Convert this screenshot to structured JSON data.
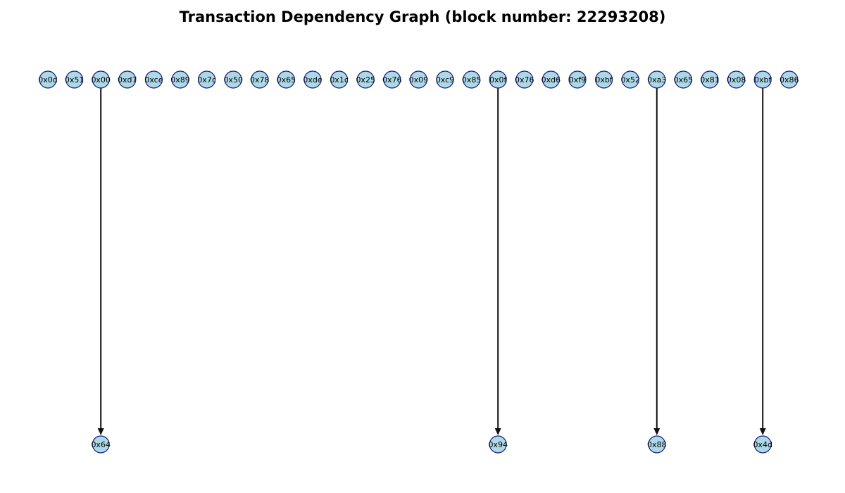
{
  "title": "Transaction Dependency Graph (block number: 22293208)",
  "colors": {
    "node_fill": "#add8e6",
    "node_stroke": "#1a1a80",
    "edge": "#111111",
    "text": "#000000"
  },
  "graph": {
    "top_row": [
      "0x0d",
      "0x51",
      "0x00",
      "0xd7",
      "0xce",
      "0x89",
      "0x7c",
      "0x50",
      "0x78",
      "0x65",
      "0xde",
      "0x1c",
      "0x25",
      "0x76",
      "0x09",
      "0xc9",
      "0x85",
      "0x0f",
      "0x76",
      "0xd6",
      "0xf9",
      "0xbf",
      "0x52",
      "0xa3",
      "0x65",
      "0x81",
      "0x08",
      "0xbf",
      "0x86"
    ],
    "edges": [
      {
        "from_index": 2,
        "to": "0x64"
      },
      {
        "from_index": 17,
        "to": "0x94"
      },
      {
        "from_index": 23,
        "to": "0x88"
      },
      {
        "from_index": 27,
        "to": "0x4d"
      }
    ]
  }
}
